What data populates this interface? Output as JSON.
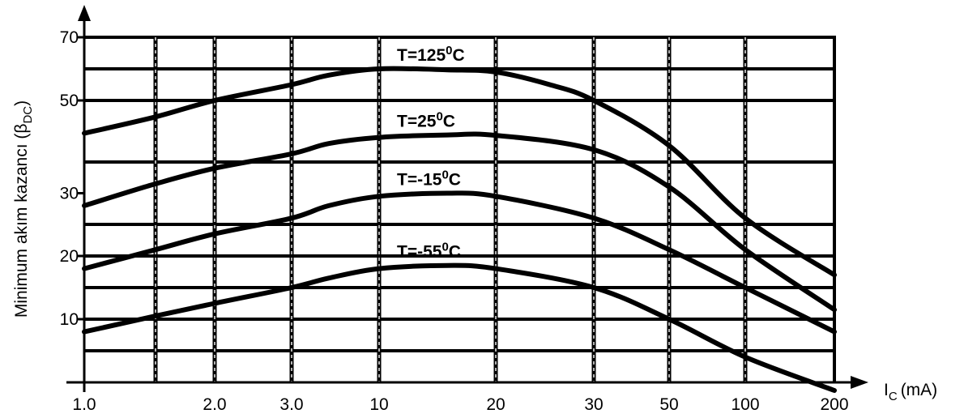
{
  "chart_data": {
    "type": "line",
    "title": "",
    "xlabel": {
      "main": "I",
      "sub": "C",
      "unit": "(mA)"
    },
    "ylabel": {
      "main": "Minimum akım kazancı (β",
      "sub": "DC",
      "close": ")"
    },
    "x_tick_labels": [
      "1.0",
      "2.0",
      "3.0",
      "10",
      "20",
      "30",
      "50",
      "100",
      "200"
    ],
    "y_tick_labels": [
      "10",
      "20",
      "30",
      "50",
      "70"
    ],
    "y_tick_positions": [
      10,
      20,
      30,
      50,
      70
    ],
    "x_gridlines": [
      1.5,
      2.0,
      3.0,
      10,
      20,
      30,
      50,
      100
    ],
    "y_gridlines": [
      5,
      10,
      15,
      20,
      25,
      35,
      50,
      60,
      70
    ],
    "xlim": [
      1.0,
      200
    ],
    "ylim": [
      0,
      70
    ],
    "grid": true,
    "series": [
      {
        "name": "T=125",
        "sup": "0",
        "unit": "C",
        "x": [
          1.0,
          1.5,
          2.0,
          3.0,
          5.0,
          10,
          15,
          20,
          25,
          30,
          50,
          100,
          200
        ],
        "y": [
          42,
          46,
          50,
          55,
          58,
          60,
          59.7,
          59,
          55,
          50,
          39,
          26,
          17
        ]
      },
      {
        "name": "T=25",
        "sup": "0",
        "unit": "C",
        "x": [
          1.0,
          1.5,
          2.0,
          3.0,
          5.0,
          10,
          15,
          20,
          30,
          50,
          100,
          200
        ],
        "y": [
          28,
          31.5,
          34,
          37,
          39.5,
          41,
          41.6,
          41.5,
          38,
          31,
          21,
          11.5
        ]
      },
      {
        "name": "T=-15",
        "sup": "0",
        "unit": "C",
        "x": [
          1.0,
          1.5,
          2.0,
          3.0,
          5.0,
          10,
          15,
          20,
          30,
          50,
          100,
          200
        ],
        "y": [
          18,
          21,
          23.5,
          26,
          28,
          29.5,
          30,
          29.5,
          26,
          21,
          15,
          8
        ]
      },
      {
        "name": "T=-55",
        "sup": "0",
        "unit": "C",
        "x": [
          1.0,
          1.5,
          2.0,
          3.0,
          5.0,
          10,
          15,
          20,
          30,
          50,
          100,
          200
        ],
        "y": [
          8,
          10.5,
          12.5,
          15,
          16.5,
          18,
          18.5,
          18,
          15,
          10,
          4,
          -2
        ]
      }
    ]
  }
}
